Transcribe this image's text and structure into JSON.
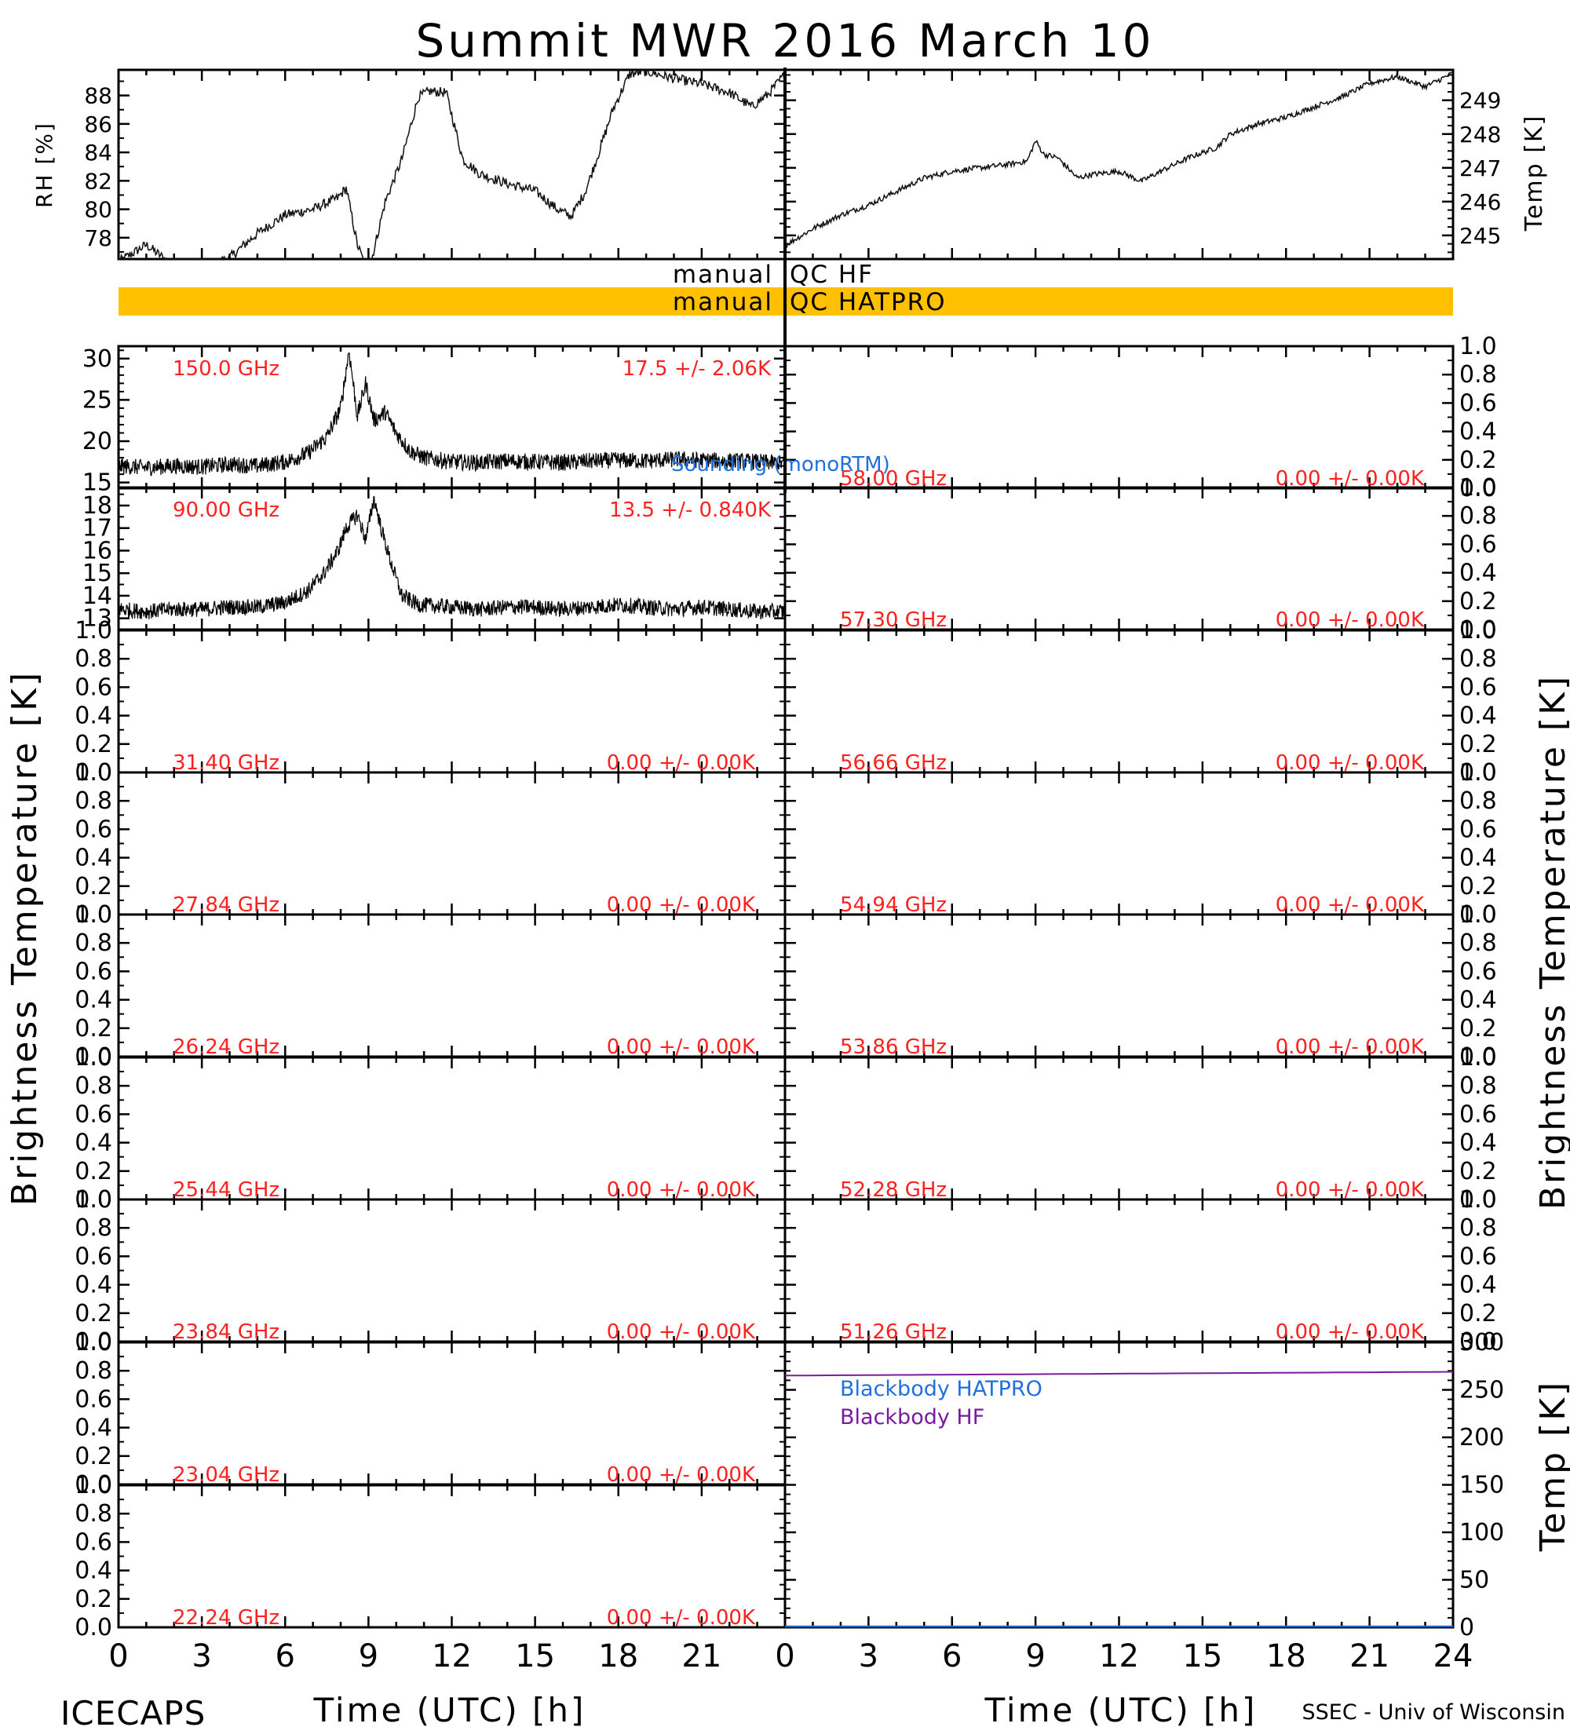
{
  "title": "Summit MWR 2016 March 10",
  "footer": {
    "left": "ICECAPS",
    "right": "SSEC - Univ of Wisconsin",
    "xlabel_left": "Time (UTC) [h]",
    "xlabel_right": "Time (UTC) [h]"
  },
  "axis_titles": {
    "rh": "RH [%]",
    "temp": "Temp [K]",
    "bt_left": "Brightness Temperature [K]",
    "bt_right": "Brightness Temperature [K]",
    "bb_temp": "Temp [K]"
  },
  "qc": {
    "hf_left": "manual",
    "hf_right": "QC HF",
    "hatpro_left": "manual",
    "hatpro_right": "QC HATPRO",
    "hatpro_color": "#ffc000"
  },
  "colors": {
    "label_red": "#ff2020",
    "sounding_blue": "#2070e0",
    "bb_hatpro": "#2070e0",
    "bb_hf": "#7a1aa0"
  },
  "chart_data": [
    {
      "type": "line",
      "name": "rh",
      "x": [
        0,
        1,
        2,
        3,
        4,
        5,
        6,
        7,
        7.9,
        8.2,
        8.6,
        9.0,
        9.6,
        10.2,
        10.8,
        11.2,
        11.8,
        12.4,
        13.0,
        14.0,
        15.0,
        15.8,
        16.3,
        16.8,
        17.3,
        17.8,
        18.4,
        19.0,
        20.0,
        21.0,
        22.0,
        22.8,
        23.4,
        24.0
      ],
      "y": [
        76.3,
        77.5,
        76.0,
        75.8,
        76.6,
        78.3,
        79.6,
        80.0,
        80.8,
        81.5,
        77.5,
        75.5,
        80.5,
        83.5,
        87.9,
        88.3,
        88.2,
        83.5,
        82.5,
        81.8,
        81.3,
        80.0,
        79.5,
        81.2,
        84.0,
        87.0,
        89.5,
        89.7,
        89.2,
        88.8,
        88.2,
        87.2,
        88.1,
        89.5
      ],
      "ylim": [
        76.5,
        89.8
      ],
      "ticks": [
        78,
        80,
        82,
        84,
        86,
        88
      ],
      "xlim": [
        0,
        24
      ],
      "side": "left"
    },
    {
      "type": "line",
      "name": "temp",
      "x": [
        0,
        1,
        2,
        3,
        4,
        5,
        6,
        7,
        8,
        8.7,
        9.0,
        9.3,
        9.8,
        10.5,
        11.0,
        12.0,
        12.8,
        13.5,
        14.5,
        15.5,
        16.0,
        17.0,
        18.0,
        19.0,
        20.0,
        21.0,
        22.0,
        23.0,
        24.0
      ],
      "y": [
        244.7,
        245.2,
        245.6,
        245.9,
        246.3,
        246.7,
        246.9,
        247.0,
        247.1,
        247.2,
        247.8,
        247.4,
        247.3,
        246.7,
        246.8,
        246.9,
        246.6,
        246.9,
        247.3,
        247.6,
        248.0,
        248.3,
        248.5,
        248.8,
        249.1,
        249.5,
        249.7,
        249.4,
        249.8
      ],
      "ylim": [
        244.3,
        249.9
      ],
      "ticks": [
        245,
        246,
        247,
        248,
        249
      ],
      "xlim": [
        0,
        24
      ],
      "side": "right"
    },
    {
      "type": "line",
      "name": "150.0 GHz",
      "freq": "150.0 GHz",
      "stats": "17.5 +/-  2.06K",
      "x": [
        0,
        1,
        2,
        3,
        4,
        5,
        6,
        6.8,
        7.5,
        8.0,
        8.3,
        8.6,
        8.9,
        9.2,
        9.6,
        10.0,
        10.5,
        11.0,
        12,
        13,
        14,
        15,
        16,
        17,
        18,
        19,
        20,
        21,
        22,
        23,
        24
      ],
      "y": [
        17.0,
        16.8,
        17.0,
        16.9,
        17.2,
        17.0,
        17.5,
        18.5,
        20.5,
        24.0,
        31.0,
        23.0,
        27.0,
        22.5,
        23.5,
        21.0,
        18.8,
        18.0,
        17.5,
        17.4,
        17.6,
        17.5,
        17.4,
        17.6,
        17.7,
        17.6,
        17.8,
        17.7,
        17.6,
        17.5,
        17.3
      ],
      "ylim": [
        14.3,
        31.5
      ],
      "ticks": [
        15,
        20,
        25,
        30
      ],
      "tick_labels": [
        "15",
        "20",
        "25",
        "30"
      ],
      "noise": 1.0,
      "xlim": [
        0,
        24
      ]
    },
    {
      "type": "line",
      "name": "90.00 GHz",
      "freq": "90.00 GHz",
      "stats": "13.5 +/- 0.840K",
      "x": [
        0,
        1,
        2,
        3,
        4,
        5,
        6,
        6.8,
        7.4,
        7.9,
        8.2,
        8.6,
        8.9,
        9.2,
        9.5,
        9.8,
        10.2,
        10.8,
        12,
        13,
        14,
        15,
        16,
        17,
        18,
        19,
        20,
        21,
        22,
        23,
        24
      ],
      "y": [
        13.4,
        13.3,
        13.4,
        13.4,
        13.5,
        13.5,
        13.7,
        14.2,
        15.0,
        16.0,
        17.0,
        17.6,
        16.5,
        18.3,
        16.8,
        15.5,
        14.0,
        13.6,
        13.5,
        13.4,
        13.5,
        13.5,
        13.4,
        13.5,
        13.6,
        13.5,
        13.4,
        13.5,
        13.4,
        13.3,
        13.3
      ],
      "ylim": [
        12.5,
        18.8
      ],
      "ticks": [
        13,
        14,
        15,
        16,
        17,
        18
      ],
      "tick_labels": [
        "13",
        "14",
        "15",
        "16",
        "17",
        "18"
      ],
      "noise": 0.35,
      "xlim": [
        0,
        24
      ]
    },
    {
      "type": "line",
      "name": "31.40 GHz",
      "freq": "31.40 GHz",
      "stats": "0.00 +/-  0.00K",
      "x": [],
      "y": [],
      "ylim": [
        0,
        1
      ],
      "xlim": [
        0,
        24
      ]
    },
    {
      "type": "line",
      "name": "27.84 GHz",
      "freq": "27.84 GHz",
      "stats": "0.00 +/-  0.00K",
      "x": [],
      "y": [],
      "ylim": [
        0,
        1
      ],
      "xlim": [
        0,
        24
      ]
    },
    {
      "type": "line",
      "name": "26.24 GHz",
      "freq": "26.24 GHz",
      "stats": "0.00 +/-  0.00K",
      "x": [],
      "y": [],
      "ylim": [
        0,
        1
      ],
      "xlim": [
        0,
        24
      ]
    },
    {
      "type": "line",
      "name": "25.44 GHz",
      "freq": "25.44 GHz",
      "stats": "0.00 +/-  0.00K",
      "x": [],
      "y": [],
      "ylim": [
        0,
        1
      ],
      "xlim": [
        0,
        24
      ]
    },
    {
      "type": "line",
      "name": "23.84 GHz",
      "freq": "23.84 GHz",
      "stats": "0.00 +/-  0.00K",
      "x": [],
      "y": [],
      "ylim": [
        0,
        1
      ],
      "xlim": [
        0,
        24
      ]
    },
    {
      "type": "line",
      "name": "23.04 GHz",
      "freq": "23.04 GHz",
      "stats": "0.00 +/-  0.00K",
      "x": [],
      "y": [],
      "ylim": [
        0,
        1
      ],
      "xlim": [
        0,
        24
      ]
    },
    {
      "type": "line",
      "name": "22.24 GHz",
      "freq": "22.24 GHz",
      "stats": "0.00 +/-  0.00K",
      "x": [],
      "y": [],
      "ylim": [
        0,
        1
      ],
      "xlim": [
        0,
        24
      ]
    },
    {
      "type": "line",
      "name": "58.00 GHz",
      "freq": "58.00 GHz",
      "stats": "0.00 +/-  0.00K",
      "x": [],
      "y": [],
      "ylim": [
        0,
        1
      ],
      "xlim": [
        0,
        24
      ]
    },
    {
      "type": "line",
      "name": "57.30 GHz",
      "freq": "57.30 GHz",
      "stats": "0.00 +/-  0.00K",
      "x": [],
      "y": [],
      "ylim": [
        0,
        1
      ],
      "xlim": [
        0,
        24
      ]
    },
    {
      "type": "line",
      "name": "56.66 GHz",
      "freq": "56.66 GHz",
      "stats": "0.00 +/-  0.00K",
      "x": [],
      "y": [],
      "ylim": [
        0,
        1
      ],
      "xlim": [
        0,
        24
      ]
    },
    {
      "type": "line",
      "name": "54.94 GHz",
      "freq": "54.94 GHz",
      "stats": "0.00 +/-  0.00K",
      "x": [],
      "y": [],
      "ylim": [
        0,
        1
      ],
      "xlim": [
        0,
        24
      ]
    },
    {
      "type": "line",
      "name": "53.86 GHz",
      "freq": "53.86 GHz",
      "stats": "0.00 +/-  0.00K",
      "x": [],
      "y": [],
      "ylim": [
        0,
        1
      ],
      "xlim": [
        0,
        24
      ]
    },
    {
      "type": "line",
      "name": "52.28 GHz",
      "freq": "52.28 GHz",
      "stats": "0.00 +/-  0.00K",
      "x": [],
      "y": [],
      "ylim": [
        0,
        1
      ],
      "xlim": [
        0,
        24
      ]
    },
    {
      "type": "line",
      "name": "51.26 GHz",
      "freq": "51.26 GHz",
      "stats": "0.00 +/-  0.00K",
      "x": [],
      "y": [],
      "ylim": [
        0,
        1
      ],
      "xlim": [
        0,
        24
      ]
    },
    {
      "type": "line",
      "name": "blackbody",
      "series": [
        {
          "name": "Blackbody HATPRO",
          "x": [
            0,
            24
          ],
          "y": [
            1,
            1
          ]
        },
        {
          "name": "Blackbody HF",
          "x": [
            0,
            6,
            12,
            18,
            24
          ],
          "y": [
            265,
            266,
            267,
            268,
            269
          ]
        }
      ],
      "ylim": [
        0,
        300
      ],
      "ticks": [
        0,
        50,
        100,
        150,
        200,
        250,
        300
      ],
      "xlim": [
        0,
        24
      ]
    }
  ],
  "sounding_label": "Sounding (monoRTM)",
  "bt_ticks": [
    "0.0",
    "0.2",
    "0.4",
    "0.6",
    "0.8",
    "1.0"
  ],
  "xticks_left": [
    "0",
    "3",
    "6",
    "9",
    "12",
    "15",
    "18",
    "21"
  ],
  "xticks_right": [
    "0",
    "3",
    "6",
    "9",
    "12",
    "15",
    "18",
    "21",
    "24"
  ]
}
